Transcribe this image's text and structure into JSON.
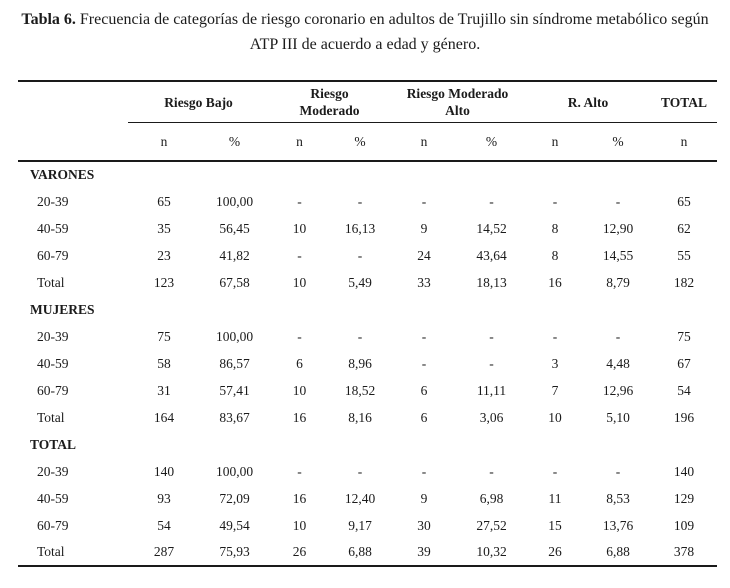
{
  "title": {
    "label": "Tabla 6.",
    "text": "Frecuencia de categorías de riesgo coronario en adultos de Trujillo sin síndrome metabólico según ATP III de acuerdo a edad y género."
  },
  "table": {
    "col_groups": [
      {
        "label": "Riesgo Bajo"
      },
      {
        "label": "Riesgo\nModerado"
      },
      {
        "label": "Riesgo Moderado\nAlto"
      },
      {
        "label": "R. Alto"
      },
      {
        "label": "TOTAL"
      }
    ],
    "subheaders": [
      "n",
      "%",
      "n",
      "%",
      "n",
      "%",
      "n",
      "%",
      "n"
    ],
    "sections": [
      {
        "header": "VARONES",
        "rows": [
          {
            "label": "20-39",
            "cells": [
              "65",
              "100,00",
              "-",
              "-",
              "-",
              "-",
              "-",
              "-",
              "65"
            ]
          },
          {
            "label": "40-59",
            "cells": [
              "35",
              "56,45",
              "10",
              "16,13",
              "9",
              "14,52",
              "8",
              "12,90",
              "62"
            ]
          },
          {
            "label": "60-79",
            "cells": [
              "23",
              "41,82",
              "-",
              "-",
              "24",
              "43,64",
              "8",
              "14,55",
              "55"
            ]
          },
          {
            "label": "Total",
            "cells": [
              "123",
              "67,58",
              "10",
              "5,49",
              "33",
              "18,13",
              "16",
              "8,79",
              "182"
            ]
          }
        ]
      },
      {
        "header": "MUJERES",
        "rows": [
          {
            "label": "20-39",
            "cells": [
              "75",
              "100,00",
              "-",
              "-",
              "-",
              "-",
              "-",
              "-",
              "75"
            ]
          },
          {
            "label": "40-59",
            "cells": [
              "58",
              "86,57",
              "6",
              "8,96",
              "-",
              "-",
              "3",
              "4,48",
              "67"
            ]
          },
          {
            "label": "60-79",
            "cells": [
              "31",
              "57,41",
              "10",
              "18,52",
              "6",
              "11,11",
              "7",
              "12,96",
              "54"
            ]
          },
          {
            "label": "Total",
            "cells": [
              "164",
              "83,67",
              "16",
              "8,16",
              "6",
              "3,06",
              "10",
              "5,10",
              "196"
            ]
          }
        ]
      },
      {
        "header": "TOTAL",
        "rows": [
          {
            "label": "20-39",
            "cells": [
              "140",
              "100,00",
              "-",
              "-",
              "-",
              "-",
              "-",
              "-",
              "140"
            ]
          },
          {
            "label": "40-59",
            "cells": [
              "93",
              "72,09",
              "16",
              "12,40",
              "9",
              "6,98",
              "11",
              "8,53",
              "129"
            ]
          },
          {
            "label": "60-79",
            "cells": [
              "54",
              "49,54",
              "10",
              "9,17",
              "30",
              "27,52",
              "15",
              "13,76",
              "109"
            ]
          },
          {
            "label": "Total",
            "cells": [
              "287",
              "75,93",
              "26",
              "6,88",
              "39",
              "10,32",
              "26",
              "6,88",
              "378"
            ]
          }
        ]
      }
    ]
  }
}
